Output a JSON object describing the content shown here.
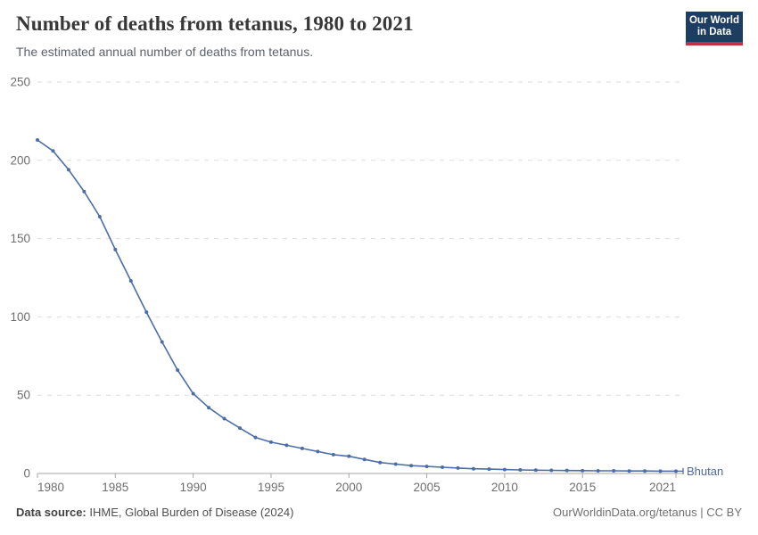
{
  "header": {
    "title": "Number of deaths from tetanus, 1980 to 2021",
    "subtitle": "The estimated annual number of deaths from tetanus.",
    "logo_line1": "Our World",
    "logo_line2": "in Data"
  },
  "chart_data": {
    "type": "line",
    "title": "Number of deaths from tetanus, 1980 to 2021",
    "entity": "Bhutan",
    "x": [
      1980,
      1981,
      1982,
      1983,
      1984,
      1985,
      1986,
      1987,
      1988,
      1989,
      1990,
      1991,
      1992,
      1993,
      1994,
      1995,
      1996,
      1997,
      1998,
      1999,
      2000,
      2001,
      2002,
      2003,
      2004,
      2005,
      2006,
      2007,
      2008,
      2009,
      2010,
      2011,
      2012,
      2013,
      2014,
      2015,
      2016,
      2017,
      2018,
      2019,
      2020,
      2021
    ],
    "values": [
      213,
      206,
      194,
      180,
      164,
      143,
      123,
      103,
      84,
      66,
      51,
      42,
      35,
      29,
      23,
      20,
      18,
      16,
      14,
      12,
      11,
      9,
      7,
      6,
      5,
      4.5,
      4,
      3.5,
      3,
      2.8,
      2.5,
      2.3,
      2.1,
      2,
      1.9,
      1.8,
      1.7,
      1.7,
      1.6,
      1.6,
      1.5,
      1.5
    ],
    "xlabel": "",
    "ylabel": "",
    "ylim": [
      0,
      250
    ],
    "yticks": [
      0,
      50,
      100,
      150,
      200,
      250
    ],
    "xtick_labels": [
      "1980",
      "1985",
      "1990",
      "1995",
      "2000",
      "2005",
      "2010",
      "2015",
      "2021"
    ],
    "xtick_years": [
      1980,
      1985,
      1990,
      1995,
      2000,
      2005,
      2010,
      2015,
      2021
    ],
    "grid": "horizontal dashed",
    "legend_position": "end-of-line label",
    "line_color": "#4c6ea8",
    "entity_label_color": "#4c6a9c",
    "grid_color": "#dcdcdc",
    "axis_color": "#a5a5a5",
    "tick_text_color": "#6e6e6e"
  },
  "footer": {
    "source_label": "Data source:",
    "source_text": " IHME, Global Burden of Disease (2024)",
    "credit": "OurWorldinData.org/tetanus | CC BY"
  }
}
